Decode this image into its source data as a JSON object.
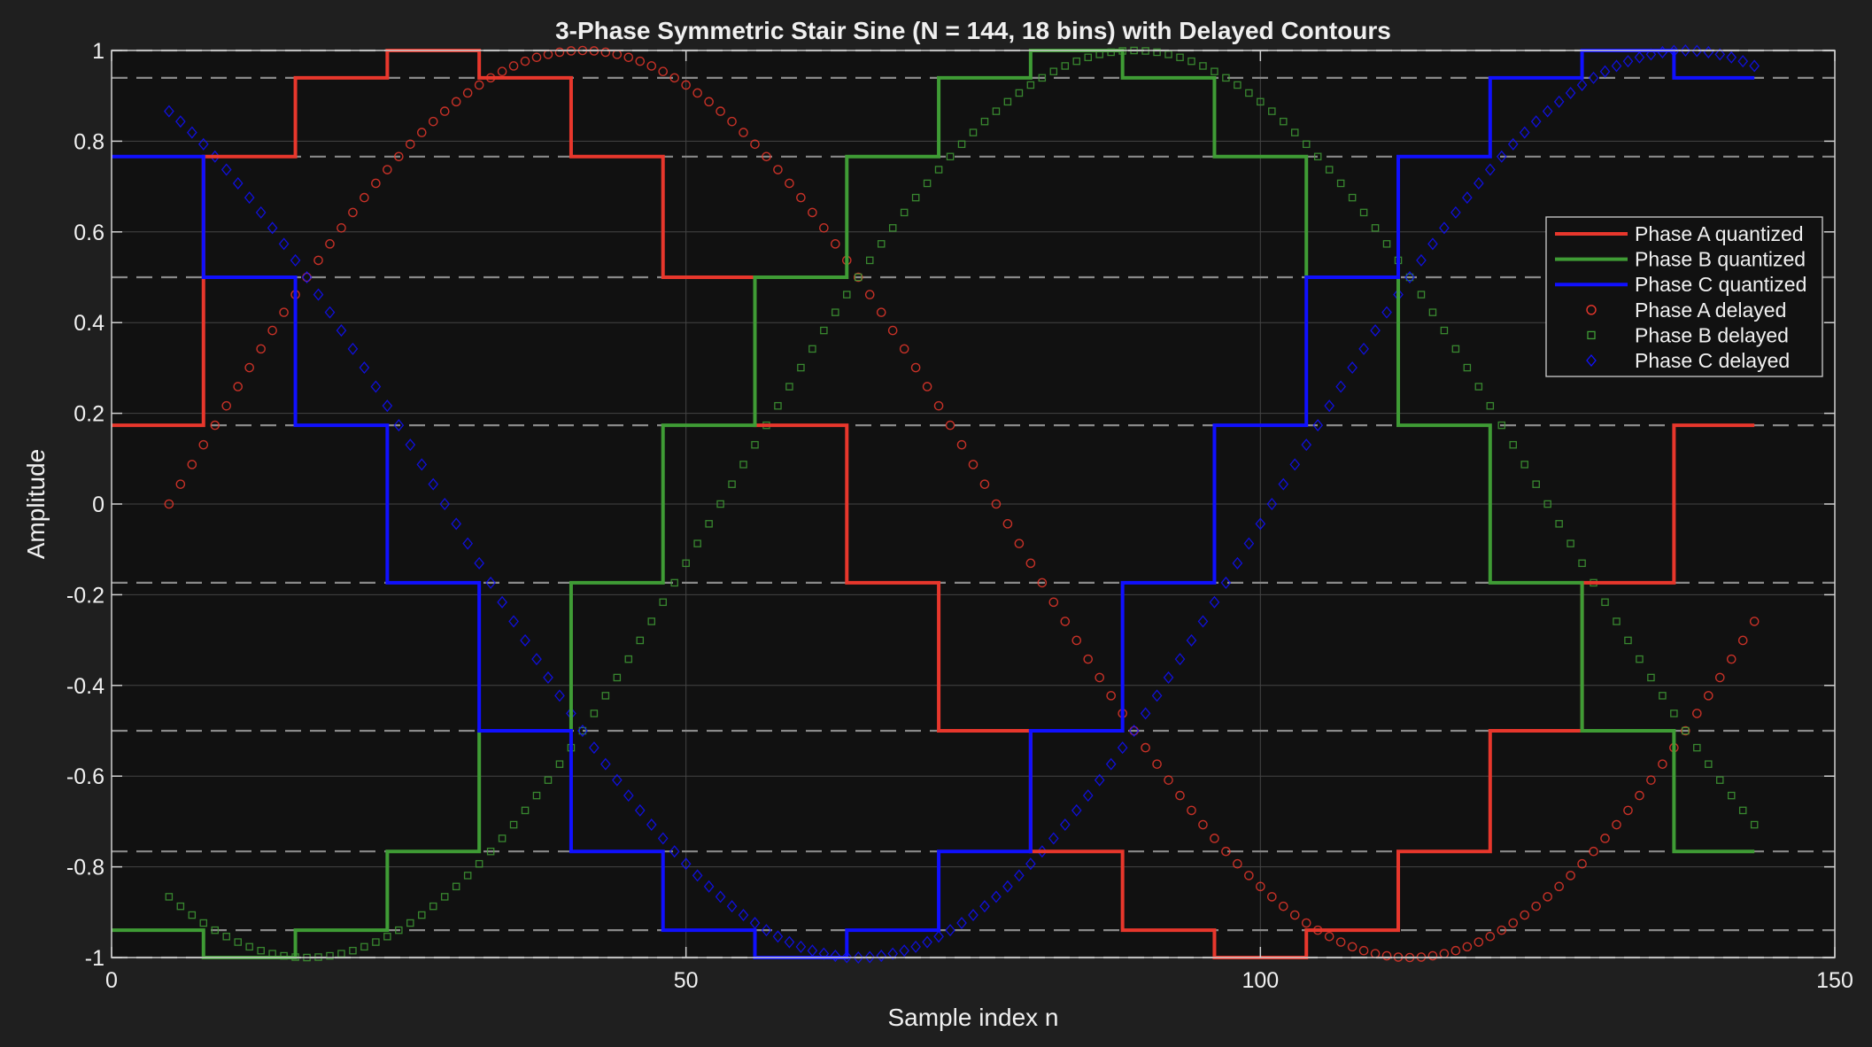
{
  "chart_data": {
    "type": "line",
    "title": "3-Phase Symmetric Stair Sine (N = 144, 18 bins) with Delayed Contours",
    "xlabel": "Sample index n",
    "ylabel": "Amplitude",
    "xlim": [
      0,
      150
    ],
    "ylim": [
      -1,
      1
    ],
    "x_ticks": [
      0,
      50,
      100,
      150
    ],
    "y_ticks": [
      -1,
      -0.8,
      -0.6,
      -0.4,
      -0.2,
      0,
      0.2,
      0.4,
      0.6,
      0.8,
      1
    ],
    "x_tick_labels": [
      "0",
      "50",
      "100",
      "150"
    ],
    "y_tick_labels": [
      "-1",
      "-0.8",
      "-0.6",
      "-0.4",
      "-0.2",
      "0",
      "0.2",
      "0.4",
      "0.6",
      "0.8",
      "1"
    ],
    "grid": true,
    "legend_position": "right",
    "quantization_levels": [
      -0.9397,
      -0.766,
      -0.5,
      -0.1736,
      0.1736,
      0.5,
      0.766,
      0.9397
    ],
    "step_width": 8,
    "samples": 144,
    "delay": 5,
    "series": [
      {
        "name": "Phase A quantized",
        "style": "step",
        "color": "#e8372c",
        "values": [
          0.1736,
          0.766,
          0.9397,
          1,
          0.9397,
          0.766,
          0.5,
          0.1736,
          -0.1736,
          -0.5,
          -0.766,
          -0.9397,
          -1,
          -0.9397,
          -0.766,
          -0.5,
          -0.1736,
          0.1736
        ]
      },
      {
        "name": "Phase B quantized",
        "style": "step",
        "color": "#3f9c35",
        "values": [
          -0.9397,
          -1,
          -0.9397,
          -0.766,
          -0.5,
          -0.1736,
          0.1736,
          0.5,
          0.766,
          0.9397,
          1,
          0.9397,
          0.766,
          0.5,
          0.1736,
          -0.1736,
          -0.5,
          -0.766
        ]
      },
      {
        "name": "Phase C quantized",
        "style": "step",
        "color": "#1010ff",
        "values": [
          0.766,
          0.5,
          0.1736,
          -0.1736,
          -0.5,
          -0.766,
          -0.9397,
          -1,
          -0.9397,
          -0.766,
          -0.5,
          -0.1736,
          0.1736,
          0.5,
          0.766,
          0.9397,
          1,
          0.9397
        ]
      },
      {
        "name": "Phase A delayed",
        "style": "markers",
        "marker": "circle",
        "color": "#e8372c",
        "phase_deg": 0
      },
      {
        "name": "Phase B delayed",
        "style": "markers",
        "marker": "square",
        "color": "#3f9c35",
        "phase_deg": -120
      },
      {
        "name": "Phase C delayed",
        "style": "markers",
        "marker": "diamond",
        "color": "#1010ff",
        "phase_deg": 120
      }
    ]
  }
}
